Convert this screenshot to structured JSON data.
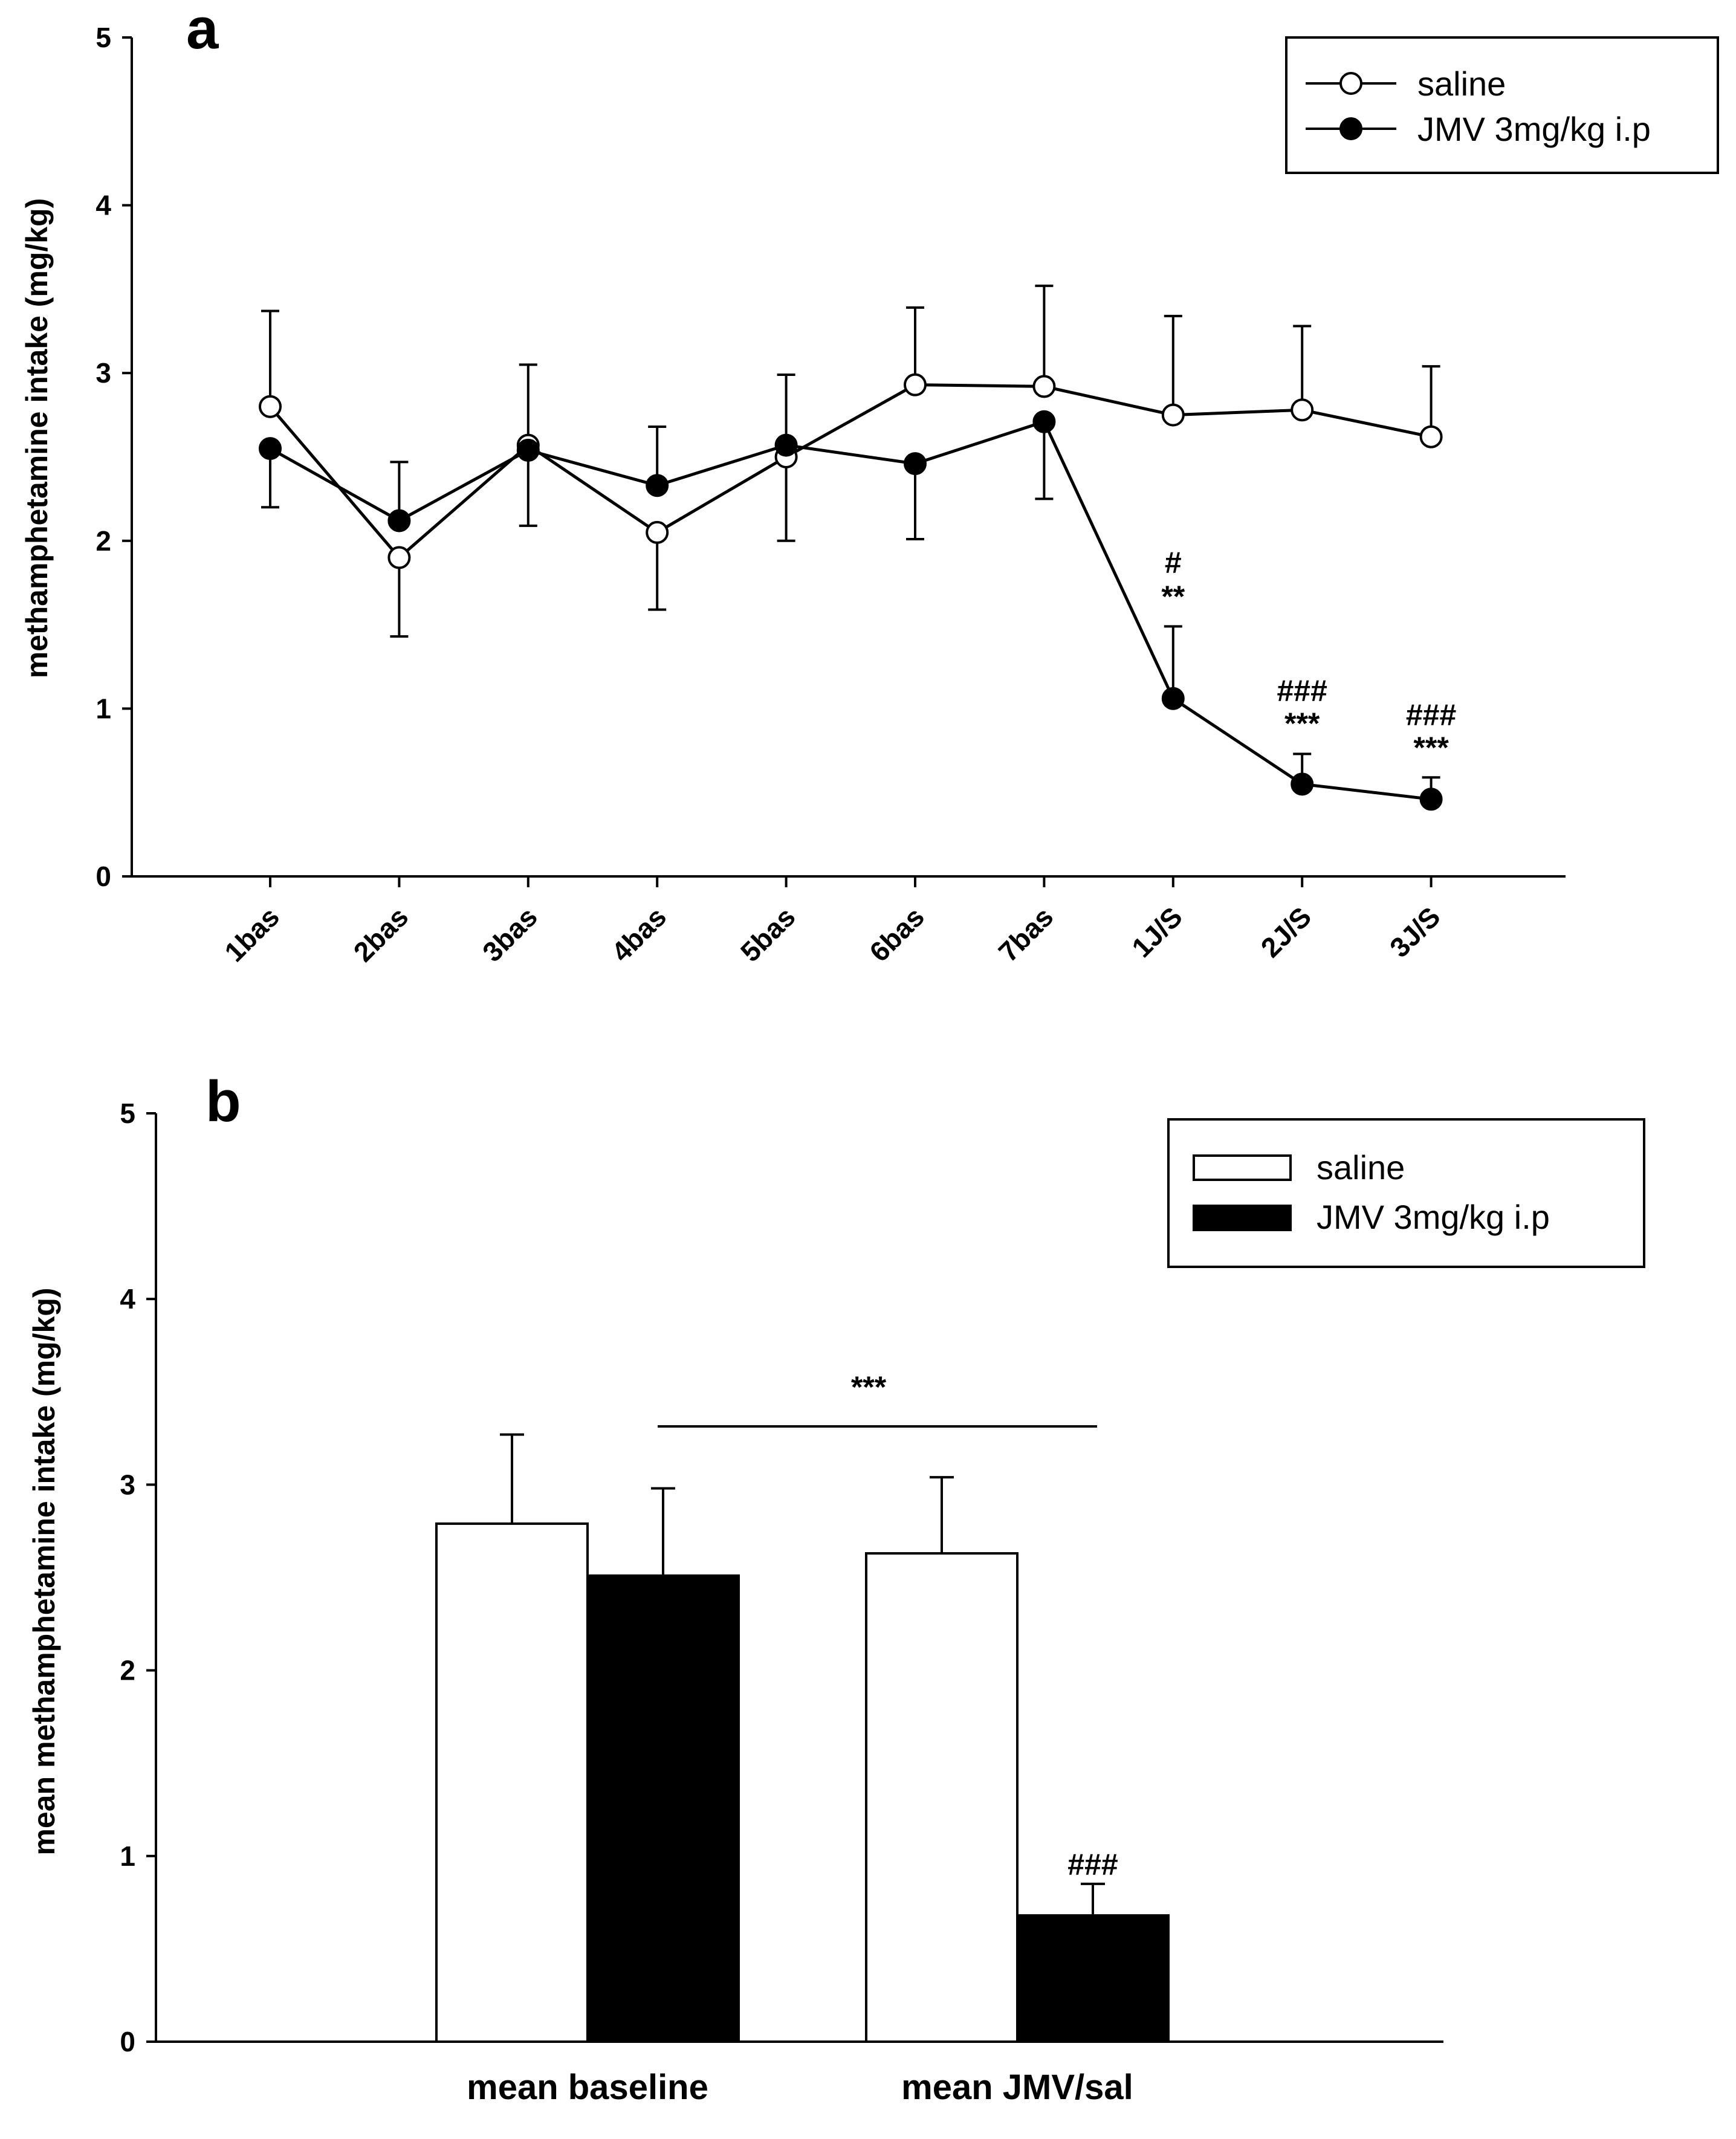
{
  "chart_data": [
    {
      "type": "line",
      "panel_label": "a",
      "ylabel": "methamphetamine intake (mg/kg)",
      "xlabel": "",
      "ylim": [
        0,
        5
      ],
      "yticks": [
        "0",
        "1",
        "2",
        "3",
        "4",
        "5"
      ],
      "categories": [
        "1bas",
        "2bas",
        "3bas",
        "4bas",
        "5bas",
        "6bas",
        "7bas",
        "1J/S",
        "2J/S",
        "3J/S"
      ],
      "legend_position": "top-right",
      "series": [
        {
          "name": "saline",
          "marker": "open-circle",
          "values": [
            2.8,
            1.9,
            2.57,
            2.05,
            2.5,
            2.93,
            2.92,
            2.75,
            2.78,
            2.62
          ],
          "error": [
            0.57,
            0.47,
            0.48,
            0.46,
            0.5,
            0.46,
            0.6,
            0.59,
            0.5,
            0.42
          ],
          "error_dir": "mixed",
          "error_up": [
            true,
            false,
            true,
            false,
            false,
            true,
            true,
            true,
            true,
            true
          ]
        },
        {
          "name": "JMV 3mg/kg i.p",
          "marker": "filled-circle",
          "values": [
            2.55,
            2.12,
            2.54,
            2.33,
            2.57,
            2.46,
            2.71,
            1.06,
            0.55,
            0.46
          ],
          "error": [
            0.35,
            0.35,
            0.45,
            0.35,
            0.42,
            0.45,
            0.46,
            0.43,
            0.18,
            0.13
          ],
          "error_up": [
            false,
            true,
            false,
            true,
            true,
            false,
            false,
            true,
            true,
            true
          ]
        }
      ],
      "annotations": [
        {
          "category": "1J/S",
          "lines": [
            "#",
            "**"
          ]
        },
        {
          "category": "2J/S",
          "lines": [
            "###",
            "***"
          ]
        },
        {
          "category": "3J/S",
          "lines": [
            "###",
            "***"
          ]
        }
      ]
    },
    {
      "type": "bar",
      "panel_label": "b",
      "ylabel": "mean methamphetamine intake (mg/kg)",
      "xlabel": "",
      "ylim": [
        0,
        5
      ],
      "yticks": [
        "0",
        "1",
        "2",
        "3",
        "4",
        "5"
      ],
      "categories": [
        "mean baseline",
        "mean JMV/sal"
      ],
      "legend_position": "top-right",
      "series": [
        {
          "name": "saline",
          "fill": "#ffffff",
          "values": [
            2.79,
            2.63
          ],
          "error": [
            0.48,
            0.41
          ]
        },
        {
          "name": "JMV 3mg/kg i.p",
          "fill": "#000000",
          "values": [
            2.51,
            0.68
          ],
          "error": [
            0.47,
            0.17
          ]
        }
      ],
      "annotations": [
        {
          "text": "###",
          "target": "mean JMV/sal - JMV 3mg/kg i.p"
        },
        {
          "text": "***",
          "target": "bracket between baseline and JMV/sal"
        }
      ]
    }
  ],
  "colors": {
    "line": "#000000",
    "background": "#ffffff"
  }
}
